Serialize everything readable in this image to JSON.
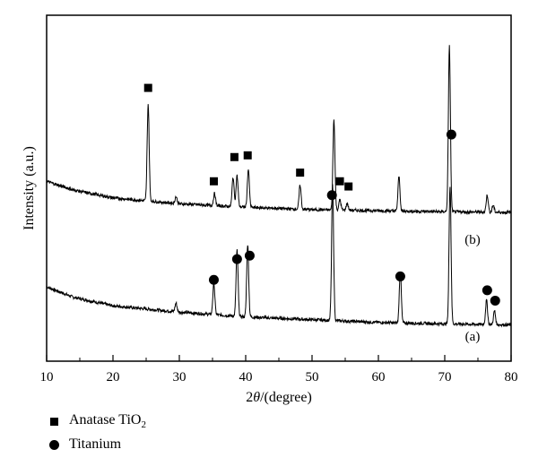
{
  "chart_data": {
    "type": "line",
    "xlabel_prefix": "2",
    "xlabel_theta": "θ",
    "xlabel_suffix": "/(degree)",
    "ylabel": "Intensity (a.u.)",
    "xlim": [
      10,
      80
    ],
    "ylim": [
      0,
      100
    ],
    "x_ticks": [
      10,
      20,
      30,
      40,
      50,
      60,
      70,
      80
    ],
    "grid": false,
    "legend_position": "bottom-left",
    "series": [
      {
        "name": "(a)",
        "baseline": [
          [
            10,
            21.5
          ],
          [
            14,
            18.5
          ],
          [
            20,
            16
          ],
          [
            30,
            14.2
          ],
          [
            40,
            12.8
          ],
          [
            50,
            12
          ],
          [
            60,
            11.2
          ],
          [
            70,
            10.8
          ],
          [
            80,
            10.5
          ]
        ],
        "peaks": [
          {
            "x": 29.5,
            "h": 2.5,
            "w": 0.15
          },
          {
            "x": 35.2,
            "h": 9,
            "w": 0.15
          },
          {
            "x": 38.7,
            "h": 19,
            "w": 0.15
          },
          {
            "x": 40.3,
            "h": 21,
            "w": 0.15
          },
          {
            "x": 53.1,
            "h": 39,
            "w": 0.15
          },
          {
            "x": 63.3,
            "h": 15,
            "w": 0.15
          },
          {
            "x": 70.8,
            "h": 40,
            "w": 0.15
          },
          {
            "x": 76.3,
            "h": 7,
            "w": 0.15
          },
          {
            "x": 77.5,
            "h": 4,
            "w": 0.15
          }
        ],
        "markers": [
          {
            "x": 35.2,
            "y": 23.5,
            "shape": "circle"
          },
          {
            "x": 38.7,
            "y": 29.5,
            "shape": "circle"
          },
          {
            "x": 40.6,
            "y": 30.5,
            "shape": "circle"
          },
          {
            "x": 63.3,
            "y": 24.5,
            "shape": "circle"
          },
          {
            "x": 76.4,
            "y": 20.5,
            "shape": "circle"
          },
          {
            "x": 77.6,
            "y": 17.5,
            "shape": "circle"
          }
        ]
      },
      {
        "name": "(b)",
        "baseline": [
          [
            10,
            52
          ],
          [
            14,
            49.5
          ],
          [
            20,
            47.2
          ],
          [
            30,
            45.5
          ],
          [
            40,
            44.5
          ],
          [
            50,
            43.8
          ],
          [
            60,
            43.5
          ],
          [
            70,
            43.2
          ],
          [
            80,
            43
          ]
        ],
        "peaks": [
          {
            "x": 25.3,
            "h": 28,
            "w": 0.15
          },
          {
            "x": 29.5,
            "h": 2,
            "w": 0.15
          },
          {
            "x": 35.3,
            "h": 3.5,
            "w": 0.15
          },
          {
            "x": 38.1,
            "h": 8.5,
            "w": 0.15
          },
          {
            "x": 38.7,
            "h": 9,
            "w": 0.15
          },
          {
            "x": 40.4,
            "h": 11,
            "w": 0.15
          },
          {
            "x": 48.2,
            "h": 7,
            "w": 0.15
          },
          {
            "x": 53.3,
            "h": 26,
            "w": 0.15
          },
          {
            "x": 54.2,
            "h": 3,
            "w": 0.15
          },
          {
            "x": 55.3,
            "h": 2,
            "w": 0.15
          },
          {
            "x": 63.1,
            "h": 10,
            "w": 0.15
          },
          {
            "x": 70.7,
            "h": 48,
            "w": 0.15
          },
          {
            "x": 76.4,
            "h": 5,
            "w": 0.15
          },
          {
            "x": 77.3,
            "h": 2,
            "w": 0.15
          }
        ],
        "markers": [
          {
            "x": 25.3,
            "y": 79,
            "shape": "square"
          },
          {
            "x": 35.2,
            "y": 52,
            "shape": "square"
          },
          {
            "x": 38.3,
            "y": 59,
            "shape": "square"
          },
          {
            "x": 40.3,
            "y": 59.5,
            "shape": "square"
          },
          {
            "x": 48.2,
            "y": 54.5,
            "shape": "square"
          },
          {
            "x": 54.2,
            "y": 52,
            "shape": "square"
          },
          {
            "x": 55.5,
            "y": 50.5,
            "shape": "square"
          },
          {
            "x": 53.0,
            "y": 48,
            "shape": "circle"
          },
          {
            "x": 71.0,
            "y": 65.5,
            "shape": "circle"
          }
        ]
      }
    ]
  },
  "legend": {
    "items": [
      {
        "label": "Anatase TiO",
        "subscript": "2",
        "shape": "square"
      },
      {
        "label": "Titanium",
        "subscript": "",
        "shape": "circle"
      }
    ]
  }
}
